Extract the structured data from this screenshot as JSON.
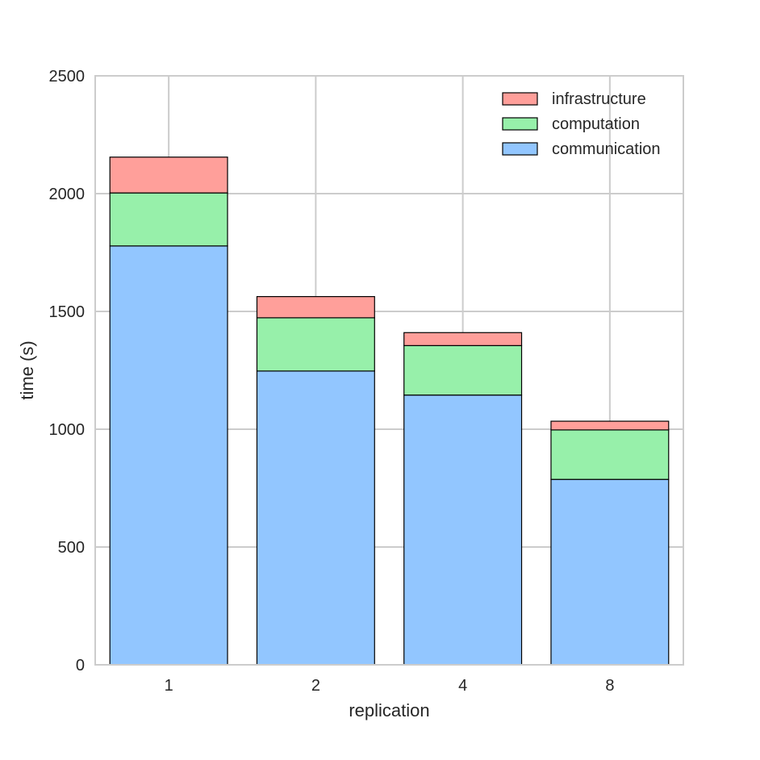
{
  "chart_data": {
    "type": "bar",
    "stacked": true,
    "title": "",
    "xlabel": "replication",
    "ylabel": "time (s)",
    "categories": [
      "1",
      "2",
      "4",
      "8"
    ],
    "ylim": [
      0,
      2500
    ],
    "yticks": [
      0,
      500,
      1000,
      1500,
      2000,
      2500
    ],
    "grid": true,
    "legend_position": "top-right",
    "series": [
      {
        "name": "communication",
        "values": [
          1778,
          1247,
          1145,
          787
        ],
        "color": "#92c6ff"
      },
      {
        "name": "computation",
        "values": [
          225,
          226,
          210,
          210
        ],
        "color": "#97f0aa"
      },
      {
        "name": "infrastructure",
        "values": [
          152,
          90,
          55,
          37
        ],
        "color": "#ff9f9a"
      }
    ],
    "legend_order": [
      "infrastructure",
      "computation",
      "communication"
    ]
  }
}
